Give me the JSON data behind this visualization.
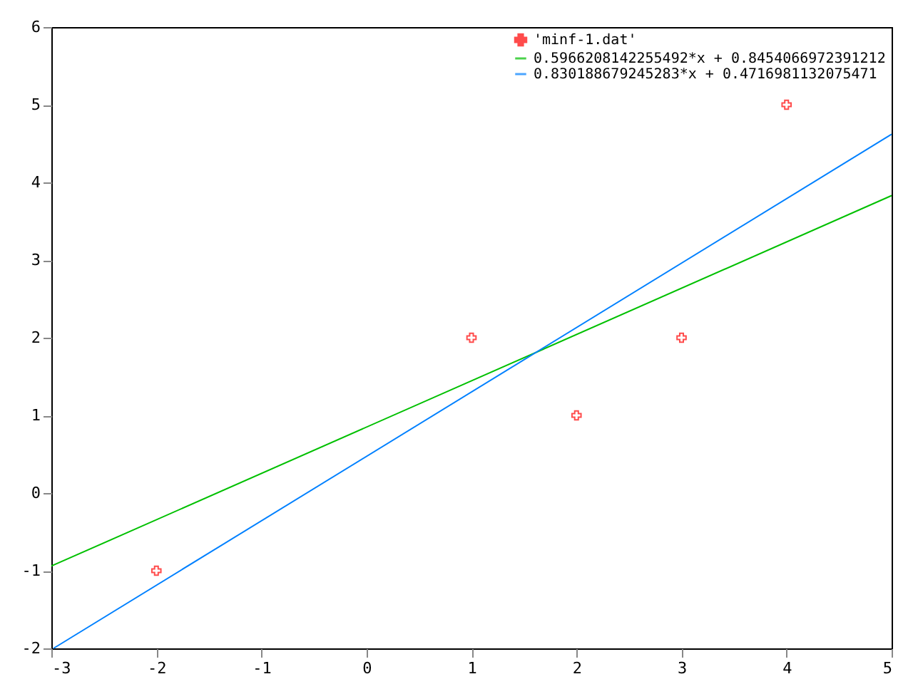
{
  "chart_data": {
    "type": "scatter",
    "xlim": [
      -3,
      5
    ],
    "ylim": [
      -2,
      6
    ],
    "xticks": [
      -3,
      -2,
      -1,
      0,
      1,
      2,
      3,
      4,
      5
    ],
    "yticks": [
      -2,
      -1,
      0,
      1,
      2,
      3,
      4,
      5,
      6
    ],
    "grid": false,
    "legend": "top right",
    "series": [
      {
        "name": "'minf-1.dat'",
        "color": "#ff0000",
        "marker": "cross",
        "x": [
          -2,
          1,
          2,
          3,
          4
        ],
        "values": [
          -1,
          2,
          1,
          2,
          5
        ]
      },
      {
        "name": "0.5966208142255492*x + 0.8454066972391212",
        "type": "line",
        "color": "#00c000",
        "x": [
          -3,
          5
        ],
        "values": [
          -0.94,
          3.83
        ]
      },
      {
        "name": "0.830188679245283*x + 0.4716981132075471",
        "type": "line",
        "color": "#0080ff",
        "x": [
          -2.98,
          5
        ],
        "values": [
          -2,
          4.62
        ]
      }
    ]
  }
}
